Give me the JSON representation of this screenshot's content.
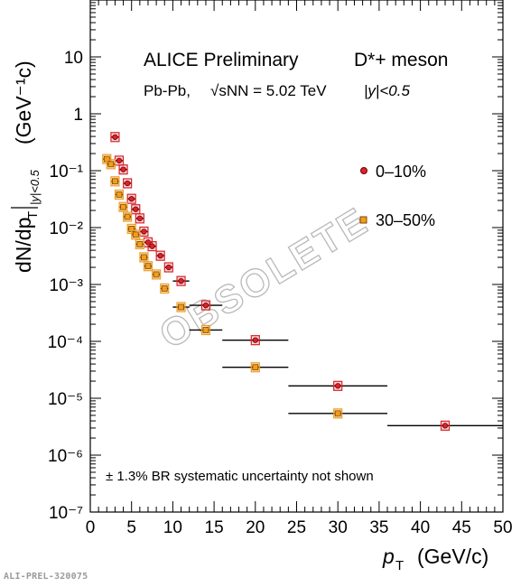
{
  "chart_data": {
    "type": "scatter",
    "log_y": true,
    "xlim": [
      0,
      50
    ],
    "ylim": [
      1e-07,
      100
    ],
    "x_ticks": [
      "0",
      "5",
      "10",
      "15",
      "20",
      "25",
      "30",
      "35",
      "40",
      "45",
      "50"
    ],
    "y_ticks": [
      "10⁻⁷",
      "10⁻⁶",
      "10⁻⁵",
      "10⁻⁴",
      "10⁻³",
      "10⁻²",
      "10⁻¹",
      "1",
      "10"
    ],
    "xlabel": {
      "var": "p",
      "sub": "T",
      "unit": "(GeV/c)"
    },
    "ylabel": {
      "main": "dN/dp",
      "sub": "T",
      "range": "|y|<0.5",
      "unit": "(GeV⁻¹c)"
    },
    "header": {
      "left": "ALICE Preliminary",
      "right": "D*+ meson"
    },
    "subheader": {
      "system": "Pb-Pb,",
      "energy": "√sNN = 5.02 TeV",
      "rapidity": "|y|<0.5"
    },
    "note": "± 1.3% BR systematic uncertainty not shown",
    "watermark": "OBSOLETE",
    "series": [
      {
        "name": "0–10%",
        "color": "#d9232a",
        "points": [
          {
            "x": 3.0,
            "xlo": 2.5,
            "xhi": 3.5,
            "y": 0.39
          },
          {
            "x": 3.5,
            "xlo": 3.0,
            "xhi": 4.0,
            "y": 0.15
          },
          {
            "x": 4.0,
            "xlo": 3.5,
            "xhi": 4.5,
            "y": 0.105
          },
          {
            "x": 4.5,
            "xlo": 4.0,
            "xhi": 5.0,
            "y": 0.06
          },
          {
            "x": 5.0,
            "xlo": 4.5,
            "xhi": 5.5,
            "y": 0.032
          },
          {
            "x": 5.5,
            "xlo": 5.0,
            "xhi": 6.0,
            "y": 0.021
          },
          {
            "x": 6.0,
            "xlo": 5.5,
            "xhi": 6.5,
            "y": 0.0145
          },
          {
            "x": 6.5,
            "xlo": 6.0,
            "xhi": 7.0,
            "y": 0.0085
          },
          {
            "x": 7.0,
            "xlo": 6.5,
            "xhi": 7.5,
            "y": 0.0055
          },
          {
            "x": 7.5,
            "xlo": 7.0,
            "xhi": 8.0,
            "y": 0.0047
          },
          {
            "x": 8.5,
            "xlo": 8.0,
            "xhi": 9.0,
            "y": 0.0032
          },
          {
            "x": 9.5,
            "xlo": 9.0,
            "xhi": 10.0,
            "y": 0.002
          },
          {
            "x": 11.0,
            "xlo": 10.0,
            "xhi": 12.0,
            "y": 0.00115
          },
          {
            "x": 14.0,
            "xlo": 12.0,
            "xhi": 16.0,
            "y": 0.00043
          },
          {
            "x": 20.0,
            "xlo": 16.0,
            "xhi": 24.0,
            "y": 0.000105
          },
          {
            "x": 30.0,
            "xlo": 24.0,
            "xhi": 36.0,
            "y": 1.65e-05
          },
          {
            "x": 43.0,
            "xlo": 36.0,
            "xhi": 50.0,
            "y": 3.3e-06
          }
        ]
      },
      {
        "name": "30–50%",
        "color": "#f39c1d",
        "points": [
          {
            "x": 2.0,
            "xlo": 1.5,
            "xhi": 2.5,
            "y": 0.16
          },
          {
            "x": 2.5,
            "xlo": 2.0,
            "xhi": 3.0,
            "y": 0.13
          },
          {
            "x": 3.0,
            "xlo": 2.5,
            "xhi": 3.5,
            "y": 0.065
          },
          {
            "x": 3.5,
            "xlo": 3.0,
            "xhi": 4.0,
            "y": 0.038
          },
          {
            "x": 4.0,
            "xlo": 3.5,
            "xhi": 4.5,
            "y": 0.023
          },
          {
            "x": 4.5,
            "xlo": 4.0,
            "xhi": 5.0,
            "y": 0.0155
          },
          {
            "x": 5.0,
            "xlo": 4.5,
            "xhi": 5.5,
            "y": 0.0095
          },
          {
            "x": 5.5,
            "xlo": 5.0,
            "xhi": 6.0,
            "y": 0.0075
          },
          {
            "x": 6.0,
            "xlo": 5.5,
            "xhi": 6.5,
            "y": 0.0051
          },
          {
            "x": 6.5,
            "xlo": 6.0,
            "xhi": 7.0,
            "y": 0.003
          },
          {
            "x": 7.0,
            "xlo": 6.5,
            "xhi": 7.5,
            "y": 0.0021
          },
          {
            "x": 8.0,
            "xlo": 7.5,
            "xhi": 8.5,
            "y": 0.0015
          },
          {
            "x": 9.0,
            "xlo": 8.5,
            "xhi": 9.5,
            "y": 0.00085
          },
          {
            "x": 11.0,
            "xlo": 10.0,
            "xhi": 12.0,
            "y": 0.0004
          },
          {
            "x": 14.0,
            "xlo": 12.0,
            "xhi": 16.0,
            "y": 0.000158
          },
          {
            "x": 20.0,
            "xlo": 16.0,
            "xhi": 24.0,
            "y": 3.5e-05
          },
          {
            "x": 30.0,
            "xlo": 24.0,
            "xhi": 36.0,
            "y": 5.4e-06
          }
        ]
      }
    ]
  },
  "footer": {
    "id": "ALI-PREL-320075"
  }
}
